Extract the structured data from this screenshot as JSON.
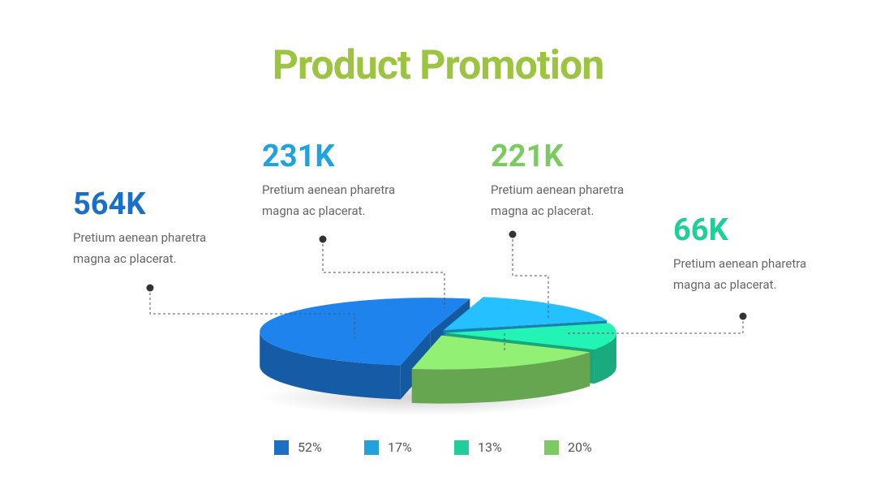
{
  "chart_data": {
    "type": "pie",
    "title": "Product Promotion",
    "values": [
      52,
      17,
      13,
      20
    ],
    "value_labels": [
      "52%",
      "17%",
      "13%",
      "20%"
    ],
    "colors": [
      "#1a6fc9",
      "#1fa3dc",
      "#1ecf9a",
      "#7ccb62"
    ],
    "annotations": [
      {
        "label": "564K",
        "text": "Pretium aenean pharetra magna ac placerat.",
        "color": "#1a6fc9"
      },
      {
        "label": "231K",
        "text": "Pretium aenean pharetra magna ac placerat.",
        "color": "#1fa3dc"
      },
      {
        "label": "221K",
        "text": "Pretium aenean pharetra magna ac placerat.",
        "color": "#7ccb62"
      },
      {
        "label": "66K",
        "text": "Pretium aenean pharetra magna ac placerat.",
        "color": "#1ecf9a"
      }
    ]
  }
}
